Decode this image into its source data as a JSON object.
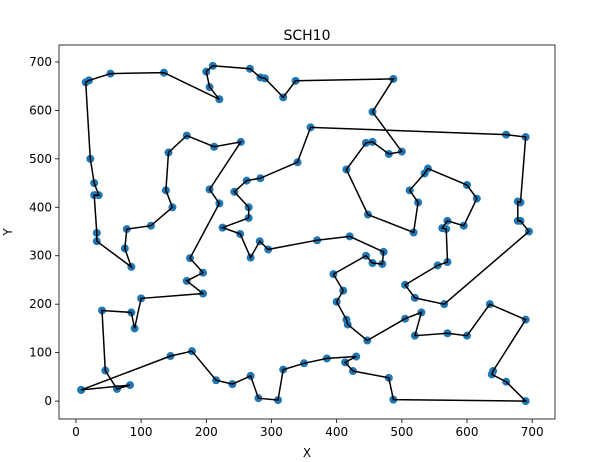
{
  "chart_data": {
    "type": "tour",
    "title": "SCH10",
    "x_label": "X",
    "y_label": "Y",
    "x": [
      8,
      83,
      63,
      45,
      40,
      85,
      90,
      100,
      195,
      170,
      195,
      175,
      220,
      205,
      253,
      212,
      170,
      142,
      138,
      148,
      115,
      78,
      75,
      85,
      32,
      32,
      28,
      35,
      28,
      22,
      15,
      20,
      53,
      135,
      220,
      205,
      200,
      210,
      267,
      283,
      290,
      318,
      337,
      487,
      455,
      500,
      480,
      455,
      445,
      415,
      448,
      518,
      525,
      512,
      535,
      540,
      600,
      615,
      595,
      570,
      562,
      568,
      570,
      555,
      505,
      520,
      565,
      695,
      682,
      678,
      678,
      682,
      690,
      660,
      360,
      340,
      283,
      262,
      243,
      265,
      265,
      225,
      252,
      268,
      282,
      295,
      370,
      420,
      472,
      470,
      455,
      445,
      395,
      410,
      400,
      415,
      417,
      447,
      505,
      530,
      520,
      570,
      600,
      635,
      690,
      640,
      638,
      660,
      690,
      487,
      480,
      425,
      413,
      430,
      385,
      350,
      318,
      310,
      280,
      268,
      240,
      215,
      178,
      145,
      8
    ],
    "y": [
      23,
      33,
      25,
      63,
      187,
      183,
      150,
      212,
      222,
      248,
      265,
      295,
      408,
      437,
      535,
      525,
      548,
      513,
      435,
      400,
      362,
      355,
      315,
      277,
      330,
      347,
      425,
      425,
      450,
      500,
      658,
      662,
      676,
      678,
      623,
      648,
      680,
      692,
      686,
      668,
      666,
      627,
      661,
      665,
      597,
      515,
      510,
      535,
      533,
      478,
      385,
      348,
      410,
      435,
      470,
      480,
      446,
      418,
      362,
      372,
      357,
      355,
      287,
      280,
      240,
      213,
      200,
      350,
      372,
      372,
      412,
      410,
      545,
      550,
      565,
      493,
      460,
      455,
      432,
      400,
      378,
      358,
      345,
      296,
      330,
      313,
      332,
      340,
      308,
      283,
      285,
      300,
      262,
      228,
      205,
      168,
      158,
      125,
      170,
      183,
      135,
      140,
      135,
      200,
      168,
      62,
      55,
      40,
      0,
      3,
      48,
      62,
      80,
      92,
      88,
      78,
      65,
      2,
      6,
      52,
      35,
      43,
      103,
      93,
      23
    ],
    "marker_color": "#1f77b4",
    "line_color": "#000000",
    "xlim": [
      -26,
      735
    ],
    "ylim": [
      -37,
      735
    ],
    "xticks": [
      0,
      100,
      200,
      300,
      400,
      500,
      600,
      700
    ],
    "yticks": [
      0,
      100,
      200,
      300,
      400,
      500,
      600,
      700
    ]
  }
}
